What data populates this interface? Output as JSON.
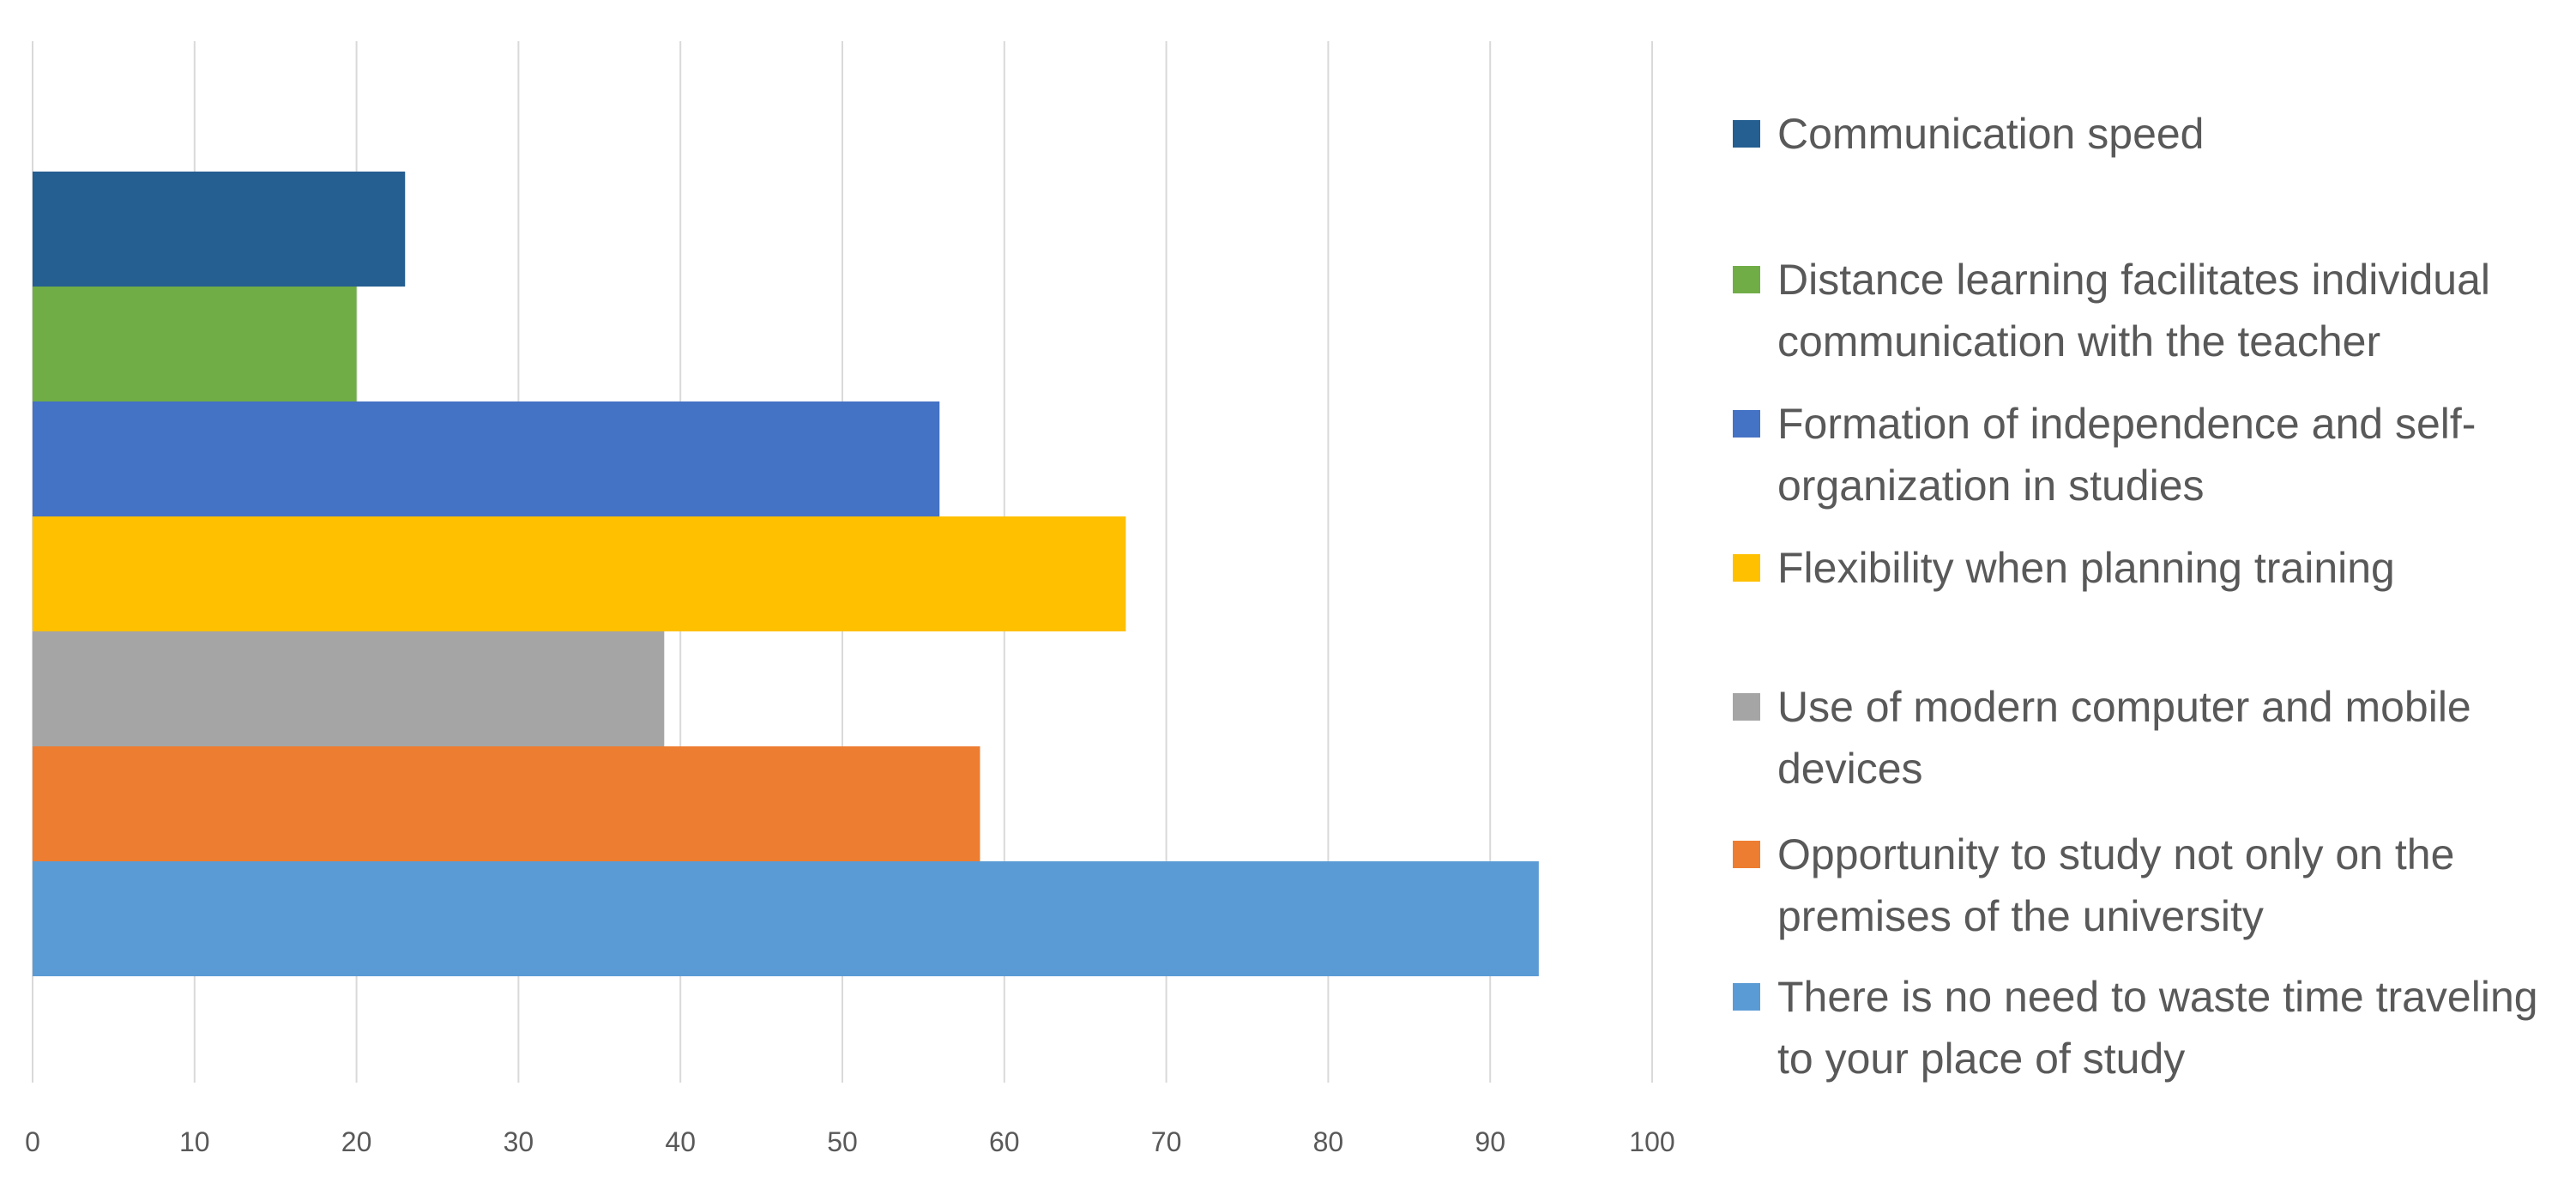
{
  "chart_data": {
    "type": "bar",
    "orientation": "horizontal",
    "title": "",
    "xlabel": "",
    "ylabel": "",
    "xlim": [
      0,
      100
    ],
    "x_ticks": [
      "0",
      "10",
      "20",
      "30",
      "40",
      "50",
      "60",
      "70",
      "80",
      "90",
      "100"
    ],
    "grid": true,
    "legend_position": "right",
    "series": [
      {
        "name": "Communication speed",
        "value": 23,
        "color": "#255E91"
      },
      {
        "name": "Distance learning facilitates individual communication with the teacher",
        "value": 20,
        "color": "#70AD47"
      },
      {
        "name": "Formation of independence and self-organization in studies",
        "value": 56,
        "color": "#4472C4"
      },
      {
        "name": "Flexibility when planning training",
        "value": 67.5,
        "color": "#FFC000"
      },
      {
        "name": "Use of modern computer and mobile devices",
        "value": 39,
        "color": "#A5A5A5"
      },
      {
        "name": "Opportunity to study not only on the premises of the university",
        "value": 58.5,
        "color": "#ED7D31"
      },
      {
        "name": "There is no need to waste time traveling to your place of study",
        "value": 93,
        "color": "#5B9BD5"
      }
    ]
  }
}
